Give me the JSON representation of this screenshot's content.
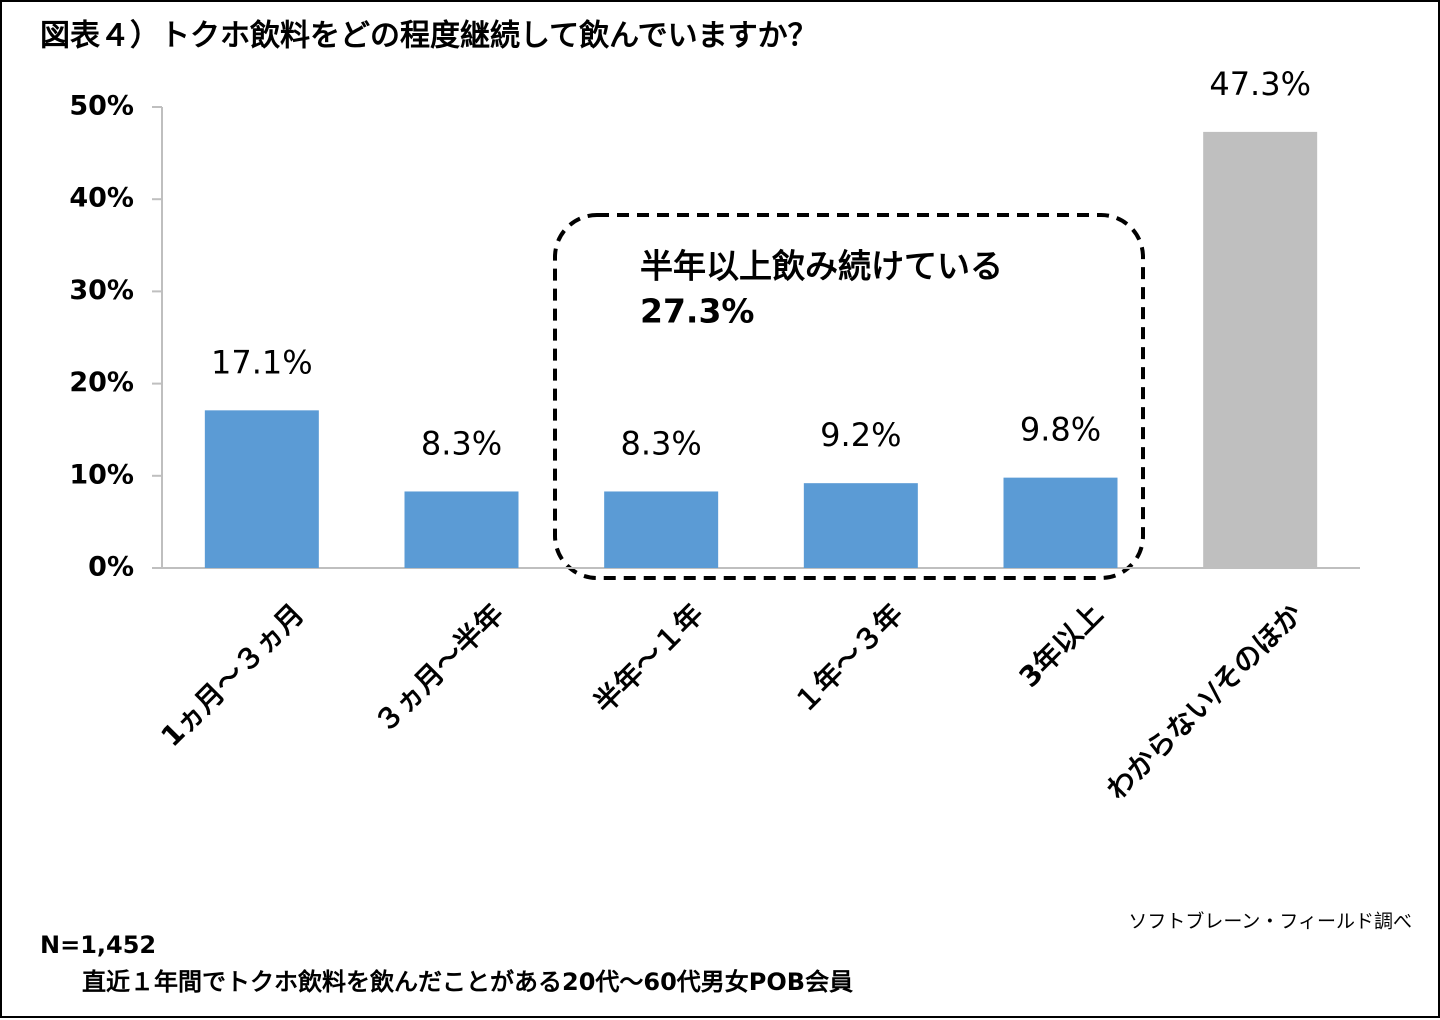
{
  "chart_data": {
    "type": "bar",
    "title": "図表４）トクホ飲料をどの程度継続して飲んでいますか？",
    "categories": [
      "1ヵ月～３ヵ月",
      "３ヵ月～半年",
      "半年～１年",
      "１年～３年",
      "3年以上",
      "わからない/そのほか"
    ],
    "values": [
      17.1,
      8.3,
      8.3,
      9.2,
      9.8,
      47.3
    ],
    "value_labels": [
      "17.1%",
      "8.3%",
      "8.3%",
      "9.2%",
      "9.8%",
      "47.3%"
    ],
    "colors": [
      "#5b9bd5",
      "#5b9bd5",
      "#5b9bd5",
      "#5b9bd5",
      "#5b9bd5",
      "#bfbfbf"
    ],
    "ylim": [
      0,
      50
    ],
    "yticks": [
      {
        "value": 0,
        "label": "0%"
      },
      {
        "value": 10,
        "label": "10%"
      },
      {
        "value": 20,
        "label": "20%"
      },
      {
        "value": 30,
        "label": "30%"
      },
      {
        "value": 40,
        "label": "40%"
      },
      {
        "value": 50,
        "label": "50%"
      }
    ],
    "grid": false,
    "annotation": [
      "半年以上飲み続けている",
      "27.3%"
    ],
    "source": "ソフトブレーン・フィールド調べ",
    "notes": [
      "N=1,452",
      "直近１年間でトクホ飲料を飲んだことがある20代～60代男女POB会員"
    ]
  }
}
